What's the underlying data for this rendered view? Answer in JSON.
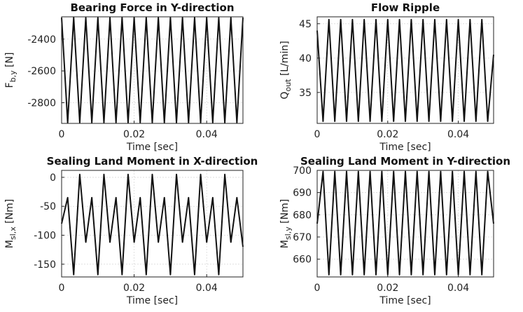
{
  "chart_data": [
    {
      "type": "line",
      "title": "Bearing Force in Y-direction",
      "xlabel": "Time [sec]",
      "ylabel": "F",
      "ylabel_sub": "b,y",
      "ylabel_unit": " [N]",
      "xlim": [
        0,
        0.05
      ],
      "ylim": [
        -2930,
        -2260
      ],
      "xticks": [
        0,
        0.02,
        0.04
      ],
      "xtick_labels": [
        "0",
        "0.02",
        "0.04"
      ],
      "yticks": [
        -2400,
        -2600,
        -2800
      ],
      "ytick_labels": [
        "-2400",
        "-2600",
        "-2800"
      ],
      "grid": true,
      "series": [
        {
          "waveform": "periodic",
          "period_s": 0.00333,
          "min": -2925,
          "max": -2265,
          "x": [
            0,
            0.00167,
            0.00333,
            0.005,
            0.00667,
            0.00833,
            0.01,
            0.01167,
            0.01333,
            0.015,
            0.01667,
            0.01833,
            0.02,
            0.02167,
            0.02333,
            0.025,
            0.02667,
            0.02833,
            0.03,
            0.03167,
            0.03333,
            0.035,
            0.03667,
            0.03833,
            0.04,
            0.04167,
            0.04333,
            0.045,
            0.04667,
            0.04833,
            0.05
          ],
          "y": [
            -2265,
            -2925,
            -2265,
            -2925,
            -2265,
            -2925,
            -2265,
            -2925,
            -2265,
            -2925,
            -2265,
            -2925,
            -2265,
            -2925,
            -2265,
            -2925,
            -2265,
            -2925,
            -2265,
            -2925,
            -2265,
            -2925,
            -2265,
            -2925,
            -2265,
            -2925,
            -2265,
            -2925,
            -2265,
            -2925,
            -2265
          ]
        }
      ]
    },
    {
      "type": "line",
      "title": "Flow Ripple",
      "xlabel": "Time [sec]",
      "ylabel": "Q",
      "ylabel_sub": "out",
      "ylabel_unit": " [L/min]",
      "xlim": [
        0,
        0.05
      ],
      "ylim": [
        30.5,
        46
      ],
      "xticks": [
        0,
        0.02,
        0.04
      ],
      "xtick_labels": [
        "0",
        "0.02",
        "0.04"
      ],
      "yticks": [
        45,
        40,
        35
      ],
      "ytick_labels": [
        "45",
        "40",
        "35"
      ],
      "grid": true,
      "series": [
        {
          "waveform": "periodic",
          "period_s": 0.00333,
          "min": 30.8,
          "max": 45.6,
          "x": [
            0,
            0.00167,
            0.00333,
            0.005,
            0.00667,
            0.00833,
            0.01,
            0.01167,
            0.01333,
            0.015,
            0.01667,
            0.01833,
            0.02,
            0.02167,
            0.02333,
            0.025,
            0.02667,
            0.02833,
            0.03,
            0.03167,
            0.03333,
            0.035,
            0.03667,
            0.03833,
            0.04,
            0.04167,
            0.04333,
            0.045,
            0.04667,
            0.04833,
            0.05
          ],
          "y": [
            44.0,
            30.8,
            45.6,
            30.8,
            45.6,
            30.8,
            45.6,
            30.8,
            45.6,
            30.8,
            45.6,
            30.8,
            45.6,
            30.8,
            45.6,
            30.8,
            45.6,
            30.8,
            45.6,
            30.8,
            45.6,
            30.8,
            45.6,
            30.8,
            45.6,
            30.8,
            45.6,
            30.8,
            45.6,
            30.8,
            40.5
          ]
        }
      ]
    },
    {
      "type": "line",
      "title": "Sealing Land Moment in X-direction",
      "xlabel": "Time [sec]",
      "ylabel": "M",
      "ylabel_sub": "sl,x",
      "ylabel_unit": " [Nm]",
      "xlim": [
        0,
        0.05
      ],
      "ylim": [
        -172,
        12
      ],
      "xticks": [
        0,
        0.02,
        0.04
      ],
      "xtick_labels": [
        "0",
        "0.02",
        "0.04"
      ],
      "yticks": [
        0,
        -50,
        -100,
        -150
      ],
      "ytick_labels": [
        "0",
        "-50",
        "-100",
        "-150"
      ],
      "grid": true,
      "series": [
        {
          "waveform": "periodic",
          "period_s": 0.00333,
          "main_peak": 5,
          "secondary_peak": -35,
          "intermediate_trough": -112,
          "min": -168,
          "x": [
            0,
            0.00167,
            0.00333,
            0.005,
            0.00667,
            0.00833,
            0.01,
            0.01167,
            0.01333,
            0.015,
            0.01667,
            0.01833,
            0.02,
            0.02167,
            0.02333,
            0.025,
            0.02667,
            0.02833,
            0.03,
            0.03167,
            0.03333,
            0.035,
            0.03667,
            0.03833,
            0.04,
            0.04167,
            0.04333,
            0.045,
            0.04667,
            0.04833,
            0.05
          ],
          "y": [
            -80,
            -35,
            -168,
            5,
            -112,
            -35,
            -168,
            5,
            -112,
            -35,
            -168,
            5,
            -112,
            -35,
            -168,
            5,
            -112,
            -35,
            -168,
            5,
            -112,
            -35,
            -168,
            5,
            -112,
            -35,
            -168,
            5,
            -112,
            -35,
            -120
          ]
        }
      ]
    },
    {
      "type": "line",
      "title": "Sealing Land Moment in Y-direction",
      "xlabel": "Time [sec]",
      "ylabel": "M",
      "ylabel_sub": "sl,y",
      "ylabel_unit": " [Nm]",
      "xlim": [
        0,
        0.05
      ],
      "ylim": [
        652,
        700
      ],
      "xticks": [
        0,
        0.02,
        0.04
      ],
      "xtick_labels": [
        "0",
        "0.02",
        "0.04"
      ],
      "yticks": [
        700,
        690,
        680,
        670,
        660
      ],
      "ytick_labels": [
        "700",
        "690",
        "680",
        "670",
        "660"
      ],
      "grid": true,
      "series": [
        {
          "waveform": "periodic",
          "period_s": 0.00333,
          "min": 653,
          "max": 699.5,
          "x": [
            0,
            0.00167,
            0.00333,
            0.005,
            0.00667,
            0.00833,
            0.01,
            0.01167,
            0.01333,
            0.015,
            0.01667,
            0.01833,
            0.02,
            0.02167,
            0.02333,
            0.025,
            0.02667,
            0.02833,
            0.03,
            0.03167,
            0.03333,
            0.035,
            0.03667,
            0.03833,
            0.04,
            0.04167,
            0.04333,
            0.045,
            0.04667,
            0.04833,
            0.05
          ],
          "y": [
            676,
            699.5,
            653,
            699.5,
            653,
            699.5,
            653,
            699.5,
            653,
            699.5,
            653,
            699.5,
            653,
            699.5,
            653,
            699.5,
            653,
            699.5,
            653,
            699.5,
            653,
            699.5,
            653,
            699.5,
            653,
            699.5,
            653,
            699.5,
            653,
            699.5,
            676
          ]
        }
      ]
    }
  ]
}
